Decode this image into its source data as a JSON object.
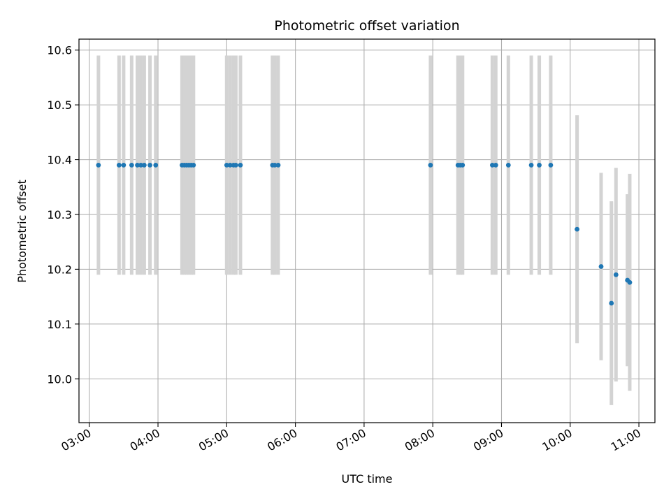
{
  "chart_data": {
    "type": "scatter",
    "title": "Photometric offset variation",
    "xlabel": "UTC time",
    "ylabel": "Photometric offset",
    "xlim": [
      "02:51",
      "11:14"
    ],
    "ylim": [
      9.92,
      10.62
    ],
    "xticks": [
      "03:00",
      "04:00",
      "05:00",
      "06:00",
      "07:00",
      "08:00",
      "09:00",
      "10:00",
      "11:00"
    ],
    "yticks": [
      "10.0",
      "10.1",
      "10.2",
      "10.3",
      "10.4",
      "10.5",
      "10.6"
    ],
    "grid": true,
    "marker_color": "#1f77b4",
    "errorbar_color": "#d3d3d3",
    "series": [
      {
        "name": "",
        "points": [
          {
            "x": "03:08",
            "y": 10.39,
            "yerr": 0.2
          },
          {
            "x": "03:26",
            "y": 10.39,
            "yerr": 0.2
          },
          {
            "x": "03:30",
            "y": 10.39,
            "yerr": 0.2
          },
          {
            "x": "03:37",
            "y": 10.39,
            "yerr": 0.2
          },
          {
            "x": "03:42",
            "y": 10.39,
            "yerr": 0.2
          },
          {
            "x": "03:45",
            "y": 10.39,
            "yerr": 0.2
          },
          {
            "x": "03:48",
            "y": 10.39,
            "yerr": 0.2
          },
          {
            "x": "03:53",
            "y": 10.39,
            "yerr": 0.2
          },
          {
            "x": "03:58",
            "y": 10.39,
            "yerr": 0.2
          },
          {
            "x": "04:21",
            "y": 10.39,
            "yerr": 0.2
          },
          {
            "x": "04:23",
            "y": 10.39,
            "yerr": 0.2
          },
          {
            "x": "04:25",
            "y": 10.39,
            "yerr": 0.2
          },
          {
            "x": "04:27",
            "y": 10.39,
            "yerr": 0.2
          },
          {
            "x": "04:29",
            "y": 10.39,
            "yerr": 0.2
          },
          {
            "x": "04:31",
            "y": 10.39,
            "yerr": 0.2
          },
          {
            "x": "05:00",
            "y": 10.39,
            "yerr": 0.2
          },
          {
            "x": "05:03",
            "y": 10.39,
            "yerr": 0.2
          },
          {
            "x": "05:06",
            "y": 10.39,
            "yerr": 0.2
          },
          {
            "x": "05:08",
            "y": 10.39,
            "yerr": 0.2
          },
          {
            "x": "05:12",
            "y": 10.39,
            "yerr": 0.2
          },
          {
            "x": "05:40",
            "y": 10.39,
            "yerr": 0.2
          },
          {
            "x": "05:42",
            "y": 10.39,
            "yerr": 0.2
          },
          {
            "x": "05:45",
            "y": 10.39,
            "yerr": 0.2
          },
          {
            "x": "07:58",
            "y": 10.39,
            "yerr": 0.2
          },
          {
            "x": "08:22",
            "y": 10.39,
            "yerr": 0.2
          },
          {
            "x": "08:24",
            "y": 10.39,
            "yerr": 0.2
          },
          {
            "x": "08:26",
            "y": 10.39,
            "yerr": 0.2
          },
          {
            "x": "08:52",
            "y": 10.39,
            "yerr": 0.2
          },
          {
            "x": "08:55",
            "y": 10.39,
            "yerr": 0.2
          },
          {
            "x": "09:06",
            "y": 10.39,
            "yerr": 0.2
          },
          {
            "x": "09:26",
            "y": 10.39,
            "yerr": 0.2
          },
          {
            "x": "09:33",
            "y": 10.39,
            "yerr": 0.2
          },
          {
            "x": "09:43",
            "y": 10.39,
            "yerr": 0.2
          },
          {
            "x": "10:06",
            "y": 10.273,
            "yerr": 0.208
          },
          {
            "x": "10:27",
            "y": 10.205,
            "yerr": 0.171
          },
          {
            "x": "10:36",
            "y": 10.138,
            "yerr": 0.186
          },
          {
            "x": "10:40",
            "y": 10.19,
            "yerr": 0.195
          },
          {
            "x": "10:50",
            "y": 10.18,
            "yerr": 0.157
          },
          {
            "x": "10:52",
            "y": 10.176,
            "yerr": 0.198
          }
        ]
      }
    ]
  }
}
